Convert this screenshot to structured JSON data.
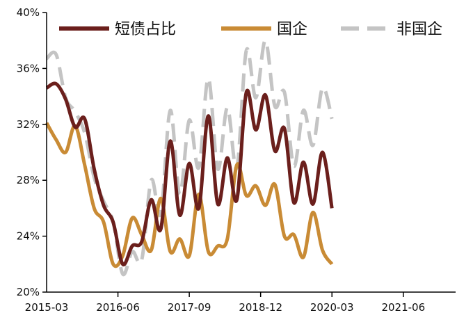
{
  "chart_data": {
    "type": "line",
    "x_ticks": [
      "2015-03",
      "2016-06",
      "2017-09",
      "2018-12",
      "2020-03",
      "2021-06"
    ],
    "y_ticks": [
      "20%",
      "24%",
      "28%",
      "32%",
      "36%",
      "40%"
    ],
    "ylim": [
      20,
      40
    ],
    "x_range": [
      "2015-03",
      "2022-05"
    ],
    "grid": false,
    "legend_position": "top",
    "series": [
      {
        "name": "短债占比",
        "color": "#6b1f1c",
        "style": "solid",
        "points": [
          [
            "2015-03",
            34.6
          ],
          [
            "2015-05",
            34.9
          ],
          [
            "2015-07",
            33.8
          ],
          [
            "2015-09",
            31.8
          ],
          [
            "2015-11",
            32.4
          ],
          [
            "2016-01",
            28.8
          ],
          [
            "2016-03",
            26.2
          ],
          [
            "2016-05",
            25.0
          ],
          [
            "2016-07",
            22.0
          ],
          [
            "2016-09",
            23.3
          ],
          [
            "2016-11",
            23.6
          ],
          [
            "2017-01",
            26.6
          ],
          [
            "2017-03",
            24.5
          ],
          [
            "2017-05",
            30.8
          ],
          [
            "2017-07",
            25.5
          ],
          [
            "2017-09",
            29.2
          ],
          [
            "2017-11",
            26.0
          ],
          [
            "2018-01",
            32.6
          ],
          [
            "2018-03",
            26.3
          ],
          [
            "2018-05",
            29.6
          ],
          [
            "2018-07",
            26.6
          ],
          [
            "2018-09",
            34.3
          ],
          [
            "2018-11",
            31.6
          ],
          [
            "2019-01",
            34.1
          ],
          [
            "2019-03",
            30.1
          ],
          [
            "2019-05",
            31.7
          ],
          [
            "2019-07",
            26.4
          ],
          [
            "2019-09",
            29.3
          ],
          [
            "2019-11",
            26.3
          ],
          [
            "2020-01",
            30.0
          ],
          [
            "2020-03",
            26.0
          ]
        ]
      },
      {
        "name": "国企",
        "color": "#c98b35",
        "style": "solid",
        "points": [
          [
            "2015-03",
            32.1
          ],
          [
            "2015-05",
            30.9
          ],
          [
            "2015-07",
            30.0
          ],
          [
            "2015-09",
            31.9
          ],
          [
            "2015-11",
            29.1
          ],
          [
            "2016-01",
            26.0
          ],
          [
            "2016-03",
            25.0
          ],
          [
            "2016-05",
            22.0
          ],
          [
            "2016-07",
            22.6
          ],
          [
            "2016-09",
            25.3
          ],
          [
            "2016-11",
            24.1
          ],
          [
            "2017-01",
            23.0
          ],
          [
            "2017-03",
            26.7
          ],
          [
            "2017-05",
            22.9
          ],
          [
            "2017-07",
            23.8
          ],
          [
            "2017-09",
            22.6
          ],
          [
            "2017-11",
            27.0
          ],
          [
            "2018-01",
            22.9
          ],
          [
            "2018-03",
            23.3
          ],
          [
            "2018-05",
            23.8
          ],
          [
            "2018-07",
            29.1
          ],
          [
            "2018-09",
            26.9
          ],
          [
            "2018-11",
            27.6
          ],
          [
            "2019-01",
            26.2
          ],
          [
            "2019-03",
            27.7
          ],
          [
            "2019-05",
            24.0
          ],
          [
            "2019-07",
            24.1
          ],
          [
            "2019-09",
            22.5
          ],
          [
            "2019-11",
            25.7
          ],
          [
            "2020-01",
            23.0
          ],
          [
            "2020-03",
            22.0
          ]
        ]
      },
      {
        "name": "非国企",
        "color": "#c4c4c4",
        "style": "dashed",
        "points": [
          [
            "2015-03",
            36.7
          ],
          [
            "2015-05",
            37.0
          ],
          [
            "2015-07",
            33.9
          ],
          [
            "2015-09",
            32.9
          ],
          [
            "2015-11",
            31.4
          ],
          [
            "2016-01",
            28.2
          ],
          [
            "2016-03",
            26.5
          ],
          [
            "2016-05",
            25.0
          ],
          [
            "2016-07",
            21.3
          ],
          [
            "2016-09",
            22.9
          ],
          [
            "2016-11",
            22.3
          ],
          [
            "2017-01",
            28.0
          ],
          [
            "2017-03",
            25.6
          ],
          [
            "2017-05",
            33.0
          ],
          [
            "2017-07",
            27.0
          ],
          [
            "2017-09",
            32.3
          ],
          [
            "2017-11",
            28.9
          ],
          [
            "2018-01",
            35.3
          ],
          [
            "2018-03",
            28.8
          ],
          [
            "2018-05",
            33.2
          ],
          [
            "2018-07",
            28.9
          ],
          [
            "2018-09",
            37.3
          ],
          [
            "2018-11",
            33.9
          ],
          [
            "2019-01",
            38.0
          ],
          [
            "2019-03",
            33.3
          ],
          [
            "2019-05",
            34.3
          ],
          [
            "2019-07",
            29.0
          ],
          [
            "2019-09",
            33.0
          ],
          [
            "2019-11",
            30.5
          ],
          [
            "2020-01",
            34.6
          ],
          [
            "2020-03",
            32.4
          ]
        ]
      }
    ]
  }
}
